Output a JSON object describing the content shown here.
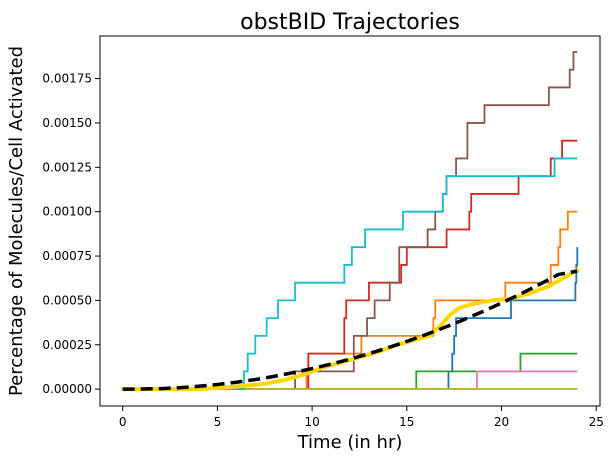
{
  "chart_data": {
    "type": "line",
    "title": "obstBID Trajectories",
    "xlabel": "Time (in hr)",
    "ylabel": "Percentage of Molecules/Cell Activated",
    "xlim": [
      -1.2,
      25.2
    ],
    "ylim": [
      -9.5e-05,
      0.00199
    ],
    "x_ticks": [
      0,
      5,
      10,
      15,
      20,
      25
    ],
    "x_tick_labels": [
      "0",
      "5",
      "10",
      "15",
      "20",
      "25"
    ],
    "y_ticks": [
      0,
      0.00025,
      0.0005,
      0.00075,
      0.001,
      0.00125,
      0.0015,
      0.00175
    ],
    "y_tick_labels": [
      "0.00000",
      "0.00025",
      "0.00050",
      "0.00075",
      "0.00100",
      "0.00125",
      "0.00150",
      "0.00175"
    ],
    "grid": false,
    "legend": "none",
    "step_series": [
      {
        "color": "#1f77b4",
        "points": [
          [
            0,
            0
          ],
          [
            17.2,
            0
          ],
          [
            17.2,
            0.0001
          ],
          [
            17.4,
            0.0001
          ],
          [
            17.4,
            0.0002
          ],
          [
            17.5,
            0.0002
          ],
          [
            17.5,
            0.0003
          ],
          [
            17.6,
            0.0003
          ],
          [
            17.6,
            0.0004
          ],
          [
            20.5,
            0.0004
          ],
          [
            20.5,
            0.0005
          ],
          [
            23.9,
            0.0005
          ],
          [
            23.9,
            0.0006
          ],
          [
            23.95,
            0.0006
          ],
          [
            23.95,
            0.0007
          ],
          [
            24.0,
            0.0007
          ],
          [
            24.0,
            0.0008
          ]
        ]
      },
      {
        "color": "#ff7f0e",
        "points": [
          [
            0,
            0
          ],
          [
            9.7,
            0
          ],
          [
            9.7,
            0.0001
          ],
          [
            9.8,
            0.0001
          ],
          [
            9.8,
            0.0002
          ],
          [
            12.6,
            0.0002
          ],
          [
            12.6,
            0.0003
          ],
          [
            16.4,
            0.0003
          ],
          [
            16.4,
            0.0004
          ],
          [
            16.5,
            0.0004
          ],
          [
            16.5,
            0.0005
          ],
          [
            20.2,
            0.0005
          ],
          [
            20.2,
            0.0006
          ],
          [
            22.6,
            0.0006
          ],
          [
            22.6,
            0.0007
          ],
          [
            23.0,
            0.0007
          ],
          [
            23.0,
            0.0008
          ],
          [
            23.1,
            0.0008
          ],
          [
            23.1,
            0.0009
          ],
          [
            23.5,
            0.0009
          ],
          [
            23.5,
            0.001
          ],
          [
            24,
            0.001
          ]
        ]
      },
      {
        "color": "#2ca02c",
        "points": [
          [
            0,
            0
          ],
          [
            15.5,
            0
          ],
          [
            15.5,
            0.0001
          ],
          [
            21.0,
            0.0001
          ],
          [
            21.0,
            0.0002
          ],
          [
            24,
            0.0002
          ]
        ]
      },
      {
        "color": "#d62728",
        "points": [
          [
            0,
            0
          ],
          [
            9.8,
            0
          ],
          [
            9.8,
            0.0002
          ],
          [
            11.7,
            0.0002
          ],
          [
            11.7,
            0.0004
          ],
          [
            11.8,
            0.0004
          ],
          [
            11.8,
            0.0005
          ],
          [
            13.0,
            0.0005
          ],
          [
            13.0,
            0.0006
          ],
          [
            14.7,
            0.0006
          ],
          [
            14.7,
            0.0007
          ],
          [
            15.0,
            0.0007
          ],
          [
            15.0,
            0.0008
          ],
          [
            17.1,
            0.0008
          ],
          [
            17.1,
            0.0009
          ],
          [
            18.3,
            0.0009
          ],
          [
            18.3,
            0.001
          ],
          [
            18.4,
            0.001
          ],
          [
            18.4,
            0.0011
          ],
          [
            20.9,
            0.0011
          ],
          [
            20.9,
            0.0012
          ],
          [
            22.6,
            0.0012
          ],
          [
            22.6,
            0.0013
          ],
          [
            23.2,
            0.0013
          ],
          [
            23.2,
            0.0014
          ],
          [
            24,
            0.0014
          ]
        ]
      },
      {
        "color": "#8c564b",
        "points": [
          [
            0,
            0
          ],
          [
            9.1,
            0
          ],
          [
            9.1,
            0.0001
          ],
          [
            12.2,
            0.0001
          ],
          [
            12.2,
            0.0003
          ],
          [
            12.9,
            0.0003
          ],
          [
            12.9,
            0.0004
          ],
          [
            13.3,
            0.0004
          ],
          [
            13.3,
            0.0005
          ],
          [
            14.1,
            0.0005
          ],
          [
            14.1,
            0.0006
          ],
          [
            14.6,
            0.0006
          ],
          [
            14.6,
            0.0008
          ],
          [
            16.1,
            0.0008
          ],
          [
            16.1,
            0.0009
          ],
          [
            16.5,
            0.0009
          ],
          [
            16.5,
            0.001
          ],
          [
            16.9,
            0.001
          ],
          [
            16.9,
            0.0011
          ],
          [
            17.1,
            0.0011
          ],
          [
            17.1,
            0.0012
          ],
          [
            17.6,
            0.0012
          ],
          [
            17.6,
            0.0013
          ],
          [
            18.2,
            0.0013
          ],
          [
            18.2,
            0.0015
          ],
          [
            19.1,
            0.0015
          ],
          [
            19.1,
            0.0016
          ],
          [
            20.0,
            0.0016
          ],
          [
            20.0,
            0.0016
          ],
          [
            22.5,
            0.0016
          ],
          [
            22.5,
            0.0017
          ],
          [
            23.6,
            0.0017
          ],
          [
            23.6,
            0.0018
          ],
          [
            23.8,
            0.0018
          ],
          [
            23.8,
            0.0019
          ],
          [
            24,
            0.0019
          ]
        ]
      },
      {
        "color": "#e377c2",
        "points": [
          [
            0,
            0
          ],
          [
            18.7,
            0
          ],
          [
            18.7,
            0.0001
          ],
          [
            24,
            0.0001
          ]
        ]
      },
      {
        "color": "#7f7f7f",
        "points": [
          [
            0,
            0
          ],
          [
            24,
            0
          ]
        ]
      },
      {
        "color": "#bcbd22",
        "points": [
          [
            0,
            0
          ],
          [
            24,
            0
          ]
        ]
      },
      {
        "color": "#17becf",
        "points": [
          [
            0,
            0
          ],
          [
            6.4,
            0
          ],
          [
            6.4,
            0.0001
          ],
          [
            6.6,
            0.0001
          ],
          [
            6.6,
            0.0002
          ],
          [
            7.0,
            0.0002
          ],
          [
            7.0,
            0.0003
          ],
          [
            7.6,
            0.0003
          ],
          [
            7.6,
            0.0004
          ],
          [
            8.2,
            0.0004
          ],
          [
            8.2,
            0.0005
          ],
          [
            8.9,
            0.0005
          ],
          [
            8.9,
            0.0005
          ],
          [
            9.1,
            0.0005
          ],
          [
            9.1,
            0.0006
          ],
          [
            11.7,
            0.0006
          ],
          [
            11.7,
            0.0007
          ],
          [
            12.1,
            0.0007
          ],
          [
            12.1,
            0.0008
          ],
          [
            12.8,
            0.0008
          ],
          [
            12.8,
            0.0009
          ],
          [
            14.8,
            0.0009
          ],
          [
            14.8,
            0.001
          ],
          [
            16.9,
            0.001
          ],
          [
            16.9,
            0.0011
          ],
          [
            17.1,
            0.0011
          ],
          [
            17.1,
            0.0012
          ],
          [
            22.8,
            0.0012
          ],
          [
            22.8,
            0.0013
          ],
          [
            24,
            0.0013
          ]
        ]
      }
    ],
    "mean_series": {
      "color": "#ffd700",
      "points": [
        [
          0,
          0
        ],
        [
          4,
          0
        ],
        [
          5.5,
          1e-05
        ],
        [
          6.5,
          2e-05
        ],
        [
          7.5,
          3e-05
        ],
        [
          8.5,
          5e-05
        ],
        [
          9.5,
          8e-05
        ],
        [
          10.5,
          0.00012
        ],
        [
          11.5,
          0.00015
        ],
        [
          12.5,
          0.00018
        ],
        [
          13.5,
          0.00021
        ],
        [
          14.5,
          0.00025
        ],
        [
          15.5,
          0.00028
        ],
        [
          16.2,
          0.0003
        ],
        [
          16.8,
          0.00036
        ],
        [
          17.3,
          0.00042
        ],
        [
          17.8,
          0.00046
        ],
        [
          18.5,
          0.00048
        ],
        [
          19.5,
          0.0005
        ],
        [
          20.5,
          0.00051
        ],
        [
          21.5,
          0.00054
        ],
        [
          22.5,
          0.00058
        ],
        [
          23.5,
          0.00064
        ],
        [
          24,
          0.00067
        ]
      ]
    },
    "fit_series": {
      "color": "#000000",
      "dash": "dashed",
      "points": [
        [
          0,
          0
        ],
        [
          1,
          5e-07
        ],
        [
          2,
          3e-06
        ],
        [
          3,
          8e-06
        ],
        [
          4,
          1.6e-05
        ],
        [
          5,
          2.6e-05
        ],
        [
          6,
          3.9e-05
        ],
        [
          7,
          5.4e-05
        ],
        [
          8,
          7.2e-05
        ],
        [
          9,
          9.3e-05
        ],
        [
          10,
          0.000116
        ],
        [
          11,
          0.000141
        ],
        [
          12,
          0.000169
        ],
        [
          13,
          0.0002
        ],
        [
          14,
          0.000233
        ],
        [
          15,
          0.000269
        ],
        [
          16,
          0.000307
        ],
        [
          17,
          0.000348
        ],
        [
          18,
          0.000391
        ],
        [
          19,
          0.000437
        ],
        [
          20,
          0.000485
        ],
        [
          21,
          0.000536
        ],
        [
          22,
          0.00059
        ],
        [
          23,
          0.000646
        ],
        [
          24,
          0.000665
        ]
      ]
    }
  }
}
